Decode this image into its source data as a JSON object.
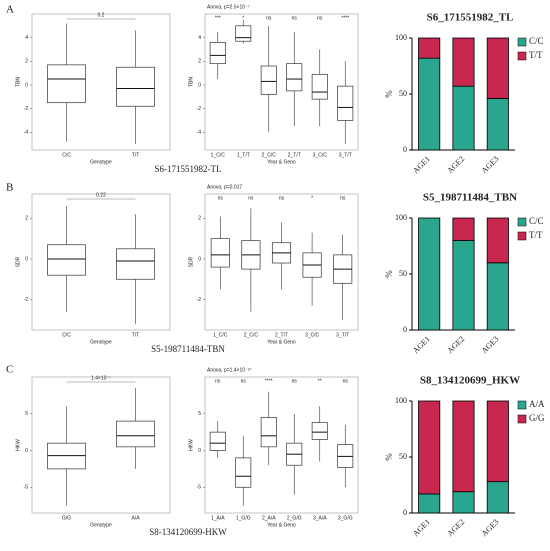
{
  "panel_labels": [
    "A",
    "B",
    "C"
  ],
  "chart_data": [
    {
      "type": "box",
      "row": 0,
      "col": 0,
      "annotation": "0.2",
      "xlabel": "Genotype",
      "ylabel": "TBN",
      "caption": "S6-171551982-TL",
      "categories": [
        "C/C",
        "T/T"
      ],
      "ylim": [
        -5.5,
        6
      ],
      "yticks": [
        -4,
        -2,
        0,
        2,
        4
      ],
      "boxes": [
        {
          "min": -4.8,
          "q1": -1.5,
          "median": 0.5,
          "q3": 1.7,
          "max": 5.2
        },
        {
          "min": -5,
          "q1": -1.8,
          "median": -0.3,
          "q3": 1.5,
          "max": 4.6
        }
      ]
    },
    {
      "type": "box",
      "row": 0,
      "col": 1,
      "title": "Anova, p=2.5×10⁻⁷",
      "xlabel": "Year & Geno",
      "ylabel": "TBN",
      "categories": [
        "1_C/C",
        "1_T/T",
        "2_C/C",
        "2_T/T",
        "3_C/C",
        "3_T/T"
      ],
      "sig_labels": [
        "***",
        "*",
        "ns",
        "ns",
        "ns",
        "****"
      ],
      "ylim": [
        -5.5,
        6
      ],
      "yticks": [
        -4,
        -2,
        0,
        2,
        4
      ],
      "boxes": [
        {
          "min": 0.5,
          "q1": 1.8,
          "median": 2.5,
          "q3": 3.6,
          "max": 4.5
        },
        {
          "min": 3.5,
          "q1": 3.7,
          "median": 4,
          "q3": 5,
          "max": 5.5
        },
        {
          "min": -4,
          "q1": -0.8,
          "median": 0.3,
          "q3": 1.6,
          "max": 5
        },
        {
          "min": -3.5,
          "q1": -0.5,
          "median": 0.5,
          "q3": 1.8,
          "max": 4.5
        },
        {
          "min": -3.5,
          "q1": -1.2,
          "median": -0.6,
          "q3": 0.9,
          "max": 3
        },
        {
          "min": -5,
          "q1": -3,
          "median": -1.9,
          "q3": -0.1,
          "max": 2
        }
      ]
    },
    {
      "type": "stacked_bar",
      "row": 0,
      "col": 2,
      "title": "S6_171551982_TL",
      "ylabel": "%",
      "categories": [
        "AGE1",
        "AGE2",
        "AGE3"
      ],
      "ylim": [
        0,
        100
      ],
      "yticks": [
        0,
        50,
        100
      ],
      "series": [
        {
          "name": "C/C",
          "color": "#2aa58e",
          "values": [
            82,
            57,
            46
          ]
        },
        {
          "name": "T/T",
          "color": "#c8284f",
          "values": [
            18,
            43,
            54
          ]
        }
      ]
    },
    {
      "type": "box",
      "row": 1,
      "col": 0,
      "annotation": "0.22",
      "xlabel": "Genotype",
      "ylabel": "SDR",
      "caption": "S5-198711484-TBN",
      "categories": [
        "C/C",
        "T/T"
      ],
      "ylim": [
        -3.5,
        3.2
      ],
      "yticks": [
        -2,
        0,
        2
      ],
      "boxes": [
        {
          "min": -2.6,
          "q1": -0.8,
          "median": 0,
          "q3": 0.7,
          "max": 2.6
        },
        {
          "min": -3.2,
          "q1": -1,
          "median": -0.1,
          "q3": 0.5,
          "max": 2.2
        }
      ]
    },
    {
      "type": "box",
      "row": 1,
      "col": 1,
      "title": "Anova, p=0.017",
      "xlabel": "Year & Geno",
      "ylabel": "SDR",
      "categories": [
        "1_C/C",
        "2_C/C",
        "2_T/T",
        "3_C/C",
        "3_T/T"
      ],
      "sig_labels": [
        "ns",
        "ns",
        "ns",
        "*",
        "ns"
      ],
      "ylim": [
        -3.5,
        3.2
      ],
      "yticks": [
        -2,
        0,
        2
      ],
      "boxes": [
        {
          "min": -1.5,
          "q1": -0.4,
          "median": 0.2,
          "q3": 1,
          "max": 2.1
        },
        {
          "min": -2.6,
          "q1": -0.5,
          "median": 0.2,
          "q3": 0.9,
          "max": 2.5
        },
        {
          "min": -1.5,
          "q1": -0.2,
          "median": 0.3,
          "q3": 0.8,
          "max": 1.8
        },
        {
          "min": -2.3,
          "q1": -0.9,
          "median": -0.3,
          "q3": 0.3,
          "max": 1.3
        },
        {
          "min": -3,
          "q1": -1.2,
          "median": -0.5,
          "q3": 0.2,
          "max": 1.2
        }
      ]
    },
    {
      "type": "stacked_bar",
      "row": 1,
      "col": 2,
      "title": "S5_198711484_TBN",
      "ylabel": "%",
      "categories": [
        "AGE1",
        "AGE2",
        "AGE3"
      ],
      "ylim": [
        0,
        100
      ],
      "yticks": [
        0,
        50,
        100
      ],
      "series": [
        {
          "name": "C/C",
          "color": "#2aa58e",
          "values": [
            100,
            80,
            60
          ]
        },
        {
          "name": "T/T",
          "color": "#c8284f",
          "values": [
            0,
            20,
            40
          ]
        }
      ]
    },
    {
      "type": "box",
      "row": 2,
      "col": 0,
      "annotation": "1.4×10⁻⁷",
      "xlabel": "Genotype",
      "ylabel": "HKW",
      "caption": "S8-134120699-HKW",
      "categories": [
        "G/G",
        "A/A"
      ],
      "ylim": [
        -8.5,
        10
      ],
      "yticks": [
        -5,
        0,
        5
      ],
      "boxes": [
        {
          "min": -7.5,
          "q1": -2.5,
          "median": -0.7,
          "q3": 1,
          "max": 6
        },
        {
          "min": -2.5,
          "q1": 0.5,
          "median": 2,
          "q3": 4,
          "max": 8.5
        }
      ]
    },
    {
      "type": "box",
      "row": 2,
      "col": 1,
      "title": "Anova, p=1.4×10⁻¹⁰",
      "xlabel": "Year & Geno",
      "ylabel": "HKW",
      "categories": [
        "1_A/A",
        "1_G/G",
        "2_A/A",
        "2_G/G",
        "3_A/A",
        "3_G/G"
      ],
      "sig_labels": [
        "ns",
        "ns",
        "****",
        "ns",
        "**",
        "ns"
      ],
      "ylim": [
        -8.5,
        10
      ],
      "yticks": [
        -5,
        0,
        5
      ],
      "boxes": [
        {
          "min": -1,
          "q1": 0,
          "median": 1,
          "q3": 2.5,
          "max": 4
        },
        {
          "min": -7.5,
          "q1": -5,
          "median": -3.5,
          "q3": -1,
          "max": 2
        },
        {
          "min": -2,
          "q1": 0.5,
          "median": 2,
          "q3": 4.5,
          "max": 8
        },
        {
          "min": -6,
          "q1": -2,
          "median": -0.5,
          "q3": 1,
          "max": 5
        },
        {
          "min": -1.5,
          "q1": 1.5,
          "median": 2.5,
          "q3": 3.8,
          "max": 6
        },
        {
          "min": -5,
          "q1": -2.3,
          "median": -0.8,
          "q3": 0.8,
          "max": 3.5
        }
      ]
    },
    {
      "type": "stacked_bar",
      "row": 2,
      "col": 2,
      "title": "S8_134120699_HKW",
      "ylabel": "%",
      "categories": [
        "AGE1",
        "AGE2",
        "AGE3"
      ],
      "ylim": [
        0,
        100
      ],
      "yticks": [
        0,
        50,
        100
      ],
      "series": [
        {
          "name": "A/A",
          "color": "#2aa58e",
          "values": [
            17,
            19,
            28
          ]
        },
        {
          "name": "G/G",
          "color": "#c8284f",
          "values": [
            83,
            81,
            72
          ]
        }
      ]
    }
  ]
}
